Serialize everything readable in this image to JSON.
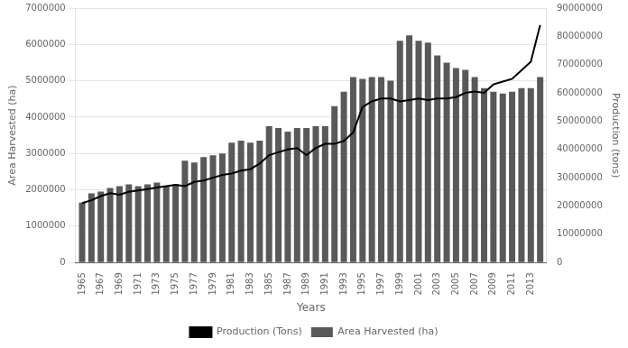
{
  "chart_data": {
    "type": "bar",
    "xlabel": "Years",
    "ylabel": "Area Harvested (ha)",
    "y2label": "Production (tons)",
    "x": [
      1965,
      1966,
      1967,
      1968,
      1969,
      1970,
      1971,
      1972,
      1973,
      1974,
      1975,
      1976,
      1977,
      1978,
      1979,
      1980,
      1981,
      1982,
      1983,
      1984,
      1985,
      1986,
      1987,
      1988,
      1989,
      1990,
      1991,
      1992,
      1993,
      1994,
      1995,
      1996,
      1997,
      1998,
      1999,
      2000,
      2001,
      2002,
      2003,
      2004,
      2005,
      2006,
      2007,
      2008,
      2009,
      2010,
      2011,
      2012,
      2013,
      2014
    ],
    "series": [
      {
        "name": "Area Harvested (ha)",
        "type": "bar",
        "color": "#595959",
        "values": [
          1650000,
          1900000,
          1950000,
          2050000,
          2100000,
          2150000,
          2100000,
          2150000,
          2200000,
          2100000,
          2150000,
          2800000,
          2750000,
          2900000,
          2950000,
          3000000,
          3300000,
          3350000,
          3300000,
          3350000,
          3750000,
          3700000,
          3600000,
          3700000,
          3700000,
          3750000,
          3750000,
          4300000,
          4700000,
          5100000,
          5050000,
          5100000,
          5100000,
          5000000,
          6100000,
          6250000,
          6100000,
          6050000,
          5700000,
          5500000,
          5350000,
          5300000,
          5100000,
          4800000,
          4700000,
          4650000,
          4700000,
          4800000,
          4800000,
          5100000
        ]
      },
      {
        "name": "Production (Tons)",
        "type": "line",
        "color": "#000000",
        "axis": "y2",
        "values": [
          21000000,
          22000000,
          23500000,
          24500000,
          24000000,
          25000000,
          25500000,
          26000000,
          26500000,
          27000000,
          27500000,
          27000000,
          28500000,
          29000000,
          30000000,
          31000000,
          31500000,
          32500000,
          33000000,
          35000000,
          38000000,
          39000000,
          40000000,
          40500000,
          38000000,
          40500000,
          42000000,
          42000000,
          43000000,
          46000000,
          55000000,
          57000000,
          58000000,
          58000000,
          57000000,
          57500000,
          58000000,
          57500000,
          58000000,
          58000000,
          58500000,
          60000000,
          60500000,
          60000000,
          63000000,
          64000000,
          65000000,
          68000000,
          71000000,
          84000000
        ]
      }
    ],
    "xlim": [
      1964.3,
      2014.7
    ],
    "xticks": [
      1965,
      1967,
      1969,
      1971,
      1973,
      1975,
      1977,
      1979,
      1981,
      1983,
      1985,
      1987,
      1989,
      1991,
      1993,
      1995,
      1997,
      1999,
      2001,
      2003,
      2005,
      2007,
      2009,
      2011,
      2013
    ],
    "ylim": [
      0,
      7000000
    ],
    "yticks": [
      0,
      1000000,
      2000000,
      3000000,
      4000000,
      5000000,
      6000000,
      7000000
    ],
    "y2lim": [
      0,
      90000000
    ],
    "y2ticks": [
      0,
      10000000,
      20000000,
      30000000,
      40000000,
      50000000,
      60000000,
      70000000,
      80000000,
      90000000
    ],
    "grid": true,
    "legend": "bottom"
  }
}
